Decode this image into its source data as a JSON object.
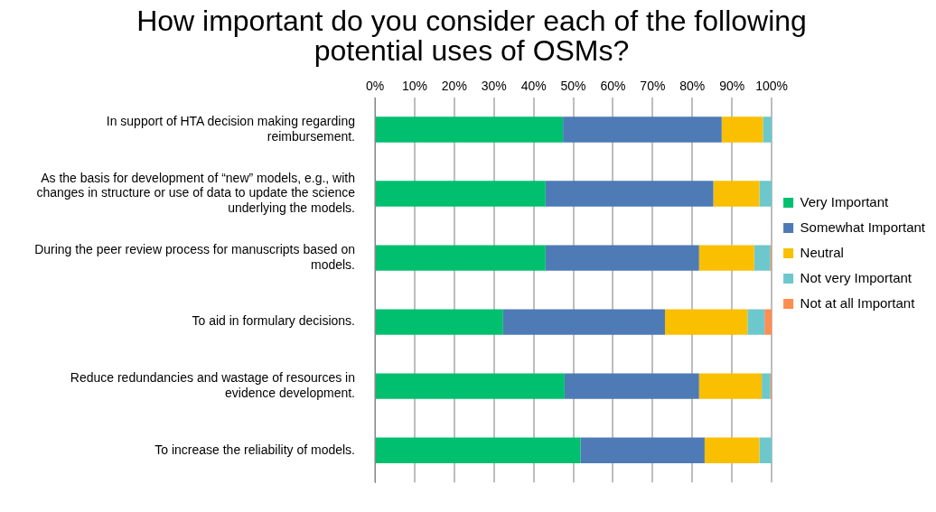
{
  "chart_data": {
    "type": "bar",
    "orientation": "horizontal",
    "stacked": true,
    "title": "How important do you consider each of the following potential uses of OSMs?",
    "categories": [
      "In support of HTA decision making regarding reimbursement.",
      "As the basis for development of “new” models, e.g., with changes in structure or use of data to update the science underlying the models.",
      "During the peer review process for manuscripts based on models.",
      "To aid in formulary decisions.",
      "Reduce redundancies and wastage of resources in evidence development.",
      "To increase the reliability of models."
    ],
    "series": [
      {
        "name": "Very Important",
        "color": "#00bf6f",
        "values": [
          47.4,
          43.0,
          43.0,
          32.3,
          47.8,
          51.8
        ]
      },
      {
        "name": "Somewhat Important",
        "color": "#4e7ab5",
        "values": [
          40.0,
          42.3,
          38.7,
          40.8,
          33.9,
          31.3
        ]
      },
      {
        "name": "Neutral",
        "color": "#f9bf00",
        "values": [
          10.4,
          11.6,
          13.9,
          20.8,
          15.8,
          13.8
        ]
      },
      {
        "name": "Not very Important",
        "color": "#6cc8cc",
        "values": [
          2.2,
          3.1,
          4.1,
          4.3,
          2.2,
          3.1
        ]
      },
      {
        "name": "Not at all Important",
        "color": "#ff8c50",
        "values": [
          0,
          0,
          0.3,
          1.8,
          0.3,
          0
        ]
      }
    ],
    "xlim": [
      0,
      100
    ],
    "xticks": [
      {
        "value": 0,
        "label": "0%"
      },
      {
        "value": 10,
        "label": "10%"
      },
      {
        "value": 20,
        "label": "20%"
      },
      {
        "value": 30,
        "label": "30%"
      },
      {
        "value": 40,
        "label": "40%"
      },
      {
        "value": 50,
        "label": "50%"
      },
      {
        "value": 60,
        "label": "60%"
      },
      {
        "value": 70,
        "label": "70%"
      },
      {
        "value": 80,
        "label": "80%"
      },
      {
        "value": 90,
        "label": "90%"
      },
      {
        "value": 100,
        "label": "100%"
      }
    ],
    "grid": "x",
    "legend": "right"
  }
}
